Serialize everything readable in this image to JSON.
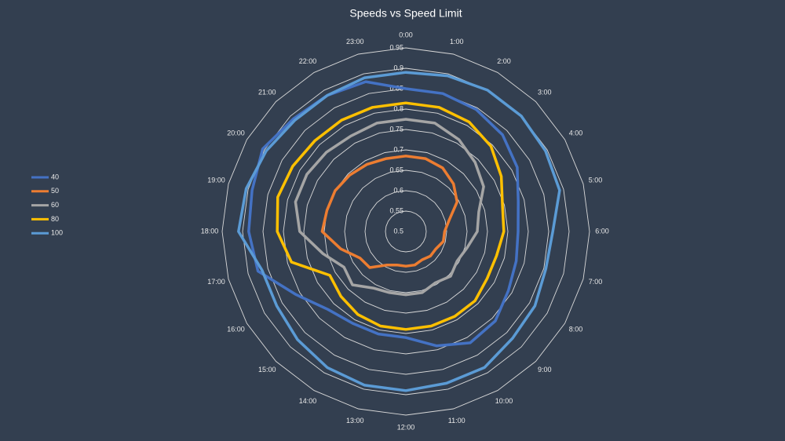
{
  "chart_data": {
    "type": "radar",
    "title": "Speeds vs Speed Limit",
    "categories": [
      "0:00",
      "1:00",
      "2:00",
      "3:00",
      "4:00",
      "5:00",
      "6:00",
      "7:00",
      "8:00",
      "9:00",
      "10:00",
      "11:00",
      "12:00",
      "13:00",
      "14:00",
      "15:00",
      "16:00",
      "17:00",
      "18:00",
      "19:00",
      "20:00",
      "21:00",
      "22:00",
      "23:00"
    ],
    "ylim": [
      0.5,
      0.95
    ],
    "yticks": [
      0.5,
      0.55,
      0.6,
      0.65,
      0.7,
      0.75,
      0.8,
      0.85,
      0.9,
      0.95
    ],
    "legend": "left",
    "series": [
      {
        "name": "40",
        "color": "#4472c4",
        "values": [
          0.85,
          0.85,
          0.845,
          0.835,
          0.815,
          0.785,
          0.775,
          0.78,
          0.79,
          0.81,
          0.815,
          0.79,
          0.76,
          0.76,
          0.76,
          0.77,
          0.81,
          0.875,
          0.885,
          0.89,
          0.905,
          0.89,
          0.885,
          0.88
        ]
      },
      {
        "name": "50",
        "color": "#ed7d31",
        "values": [
          0.685,
          0.685,
          0.68,
          0.665,
          0.645,
          0.61,
          0.595,
          0.595,
          0.585,
          0.585,
          0.58,
          0.585,
          0.585,
          0.585,
          0.595,
          0.625,
          0.63,
          0.665,
          0.705,
          0.7,
          0.7,
          0.695,
          0.69,
          0.685
        ]
      },
      {
        "name": "60",
        "color": "#a5a5a5",
        "values": [
          0.775,
          0.775,
          0.76,
          0.74,
          0.72,
          0.685,
          0.675,
          0.655,
          0.645,
          0.655,
          0.645,
          0.655,
          0.655,
          0.655,
          0.66,
          0.685,
          0.675,
          0.71,
          0.76,
          0.78,
          0.78,
          0.775,
          0.77,
          0.775
        ]
      },
      {
        "name": "80",
        "color": "#ffc000",
        "values": [
          0.815,
          0.815,
          0.81,
          0.795,
          0.77,
          0.745,
          0.74,
          0.73,
          0.73,
          0.74,
          0.74,
          0.74,
          0.74,
          0.74,
          0.735,
          0.725,
          0.715,
          0.79,
          0.815,
          0.825,
          0.82,
          0.815,
          0.815,
          0.815
        ]
      },
      {
        "name": "100",
        "color": "#5b9bd5",
        "values": [
          0.89,
          0.895,
          0.9,
          0.9,
          0.895,
          0.89,
          0.86,
          0.855,
          0.865,
          0.87,
          0.885,
          0.885,
          0.89,
          0.89,
          0.885,
          0.875,
          0.865,
          0.865,
          0.91,
          0.905,
          0.895,
          0.885,
          0.885,
          0.89
        ]
      }
    ]
  }
}
